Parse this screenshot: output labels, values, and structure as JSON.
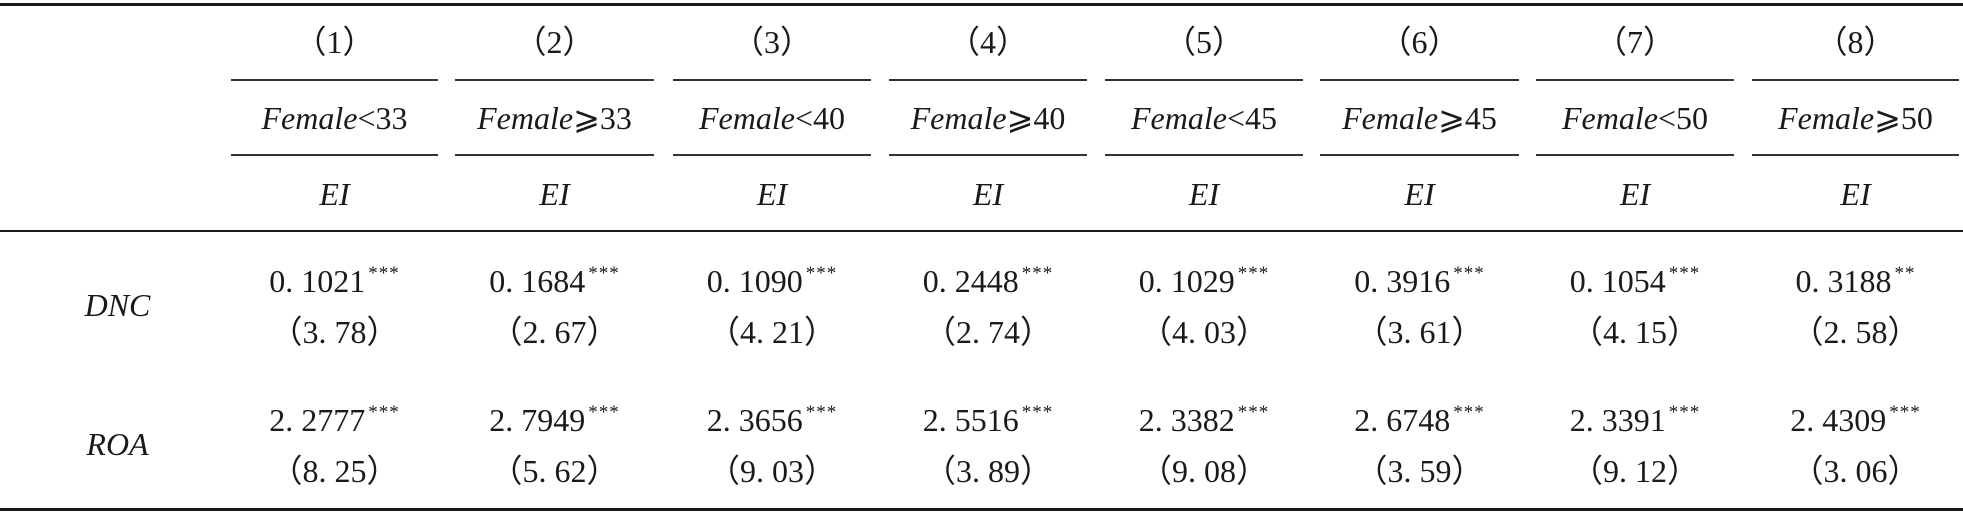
{
  "table": {
    "columns": [
      {
        "number": "（1）",
        "group_var": "Female",
        "group_op": "<33",
        "dep_var": "EI"
      },
      {
        "number": "（2）",
        "group_var": "Female",
        "group_op": "⩾33",
        "dep_var": "EI"
      },
      {
        "number": "（3）",
        "group_var": "Female",
        "group_op": "<40",
        "dep_var": "EI"
      },
      {
        "number": "（4）",
        "group_var": "Female",
        "group_op": "⩾40",
        "dep_var": "EI"
      },
      {
        "number": "（5）",
        "group_var": "Female",
        "group_op": "<45",
        "dep_var": "EI"
      },
      {
        "number": "（6）",
        "group_var": "Female",
        "group_op": "⩾45",
        "dep_var": "EI"
      },
      {
        "number": "（7）",
        "group_var": "Female",
        "group_op": "<50",
        "dep_var": "EI"
      },
      {
        "number": "（8）",
        "group_var": "Female",
        "group_op": "⩾50",
        "dep_var": "EI"
      }
    ],
    "rows": [
      {
        "label": "DNC",
        "cells": [
          {
            "coef": "0. 1021",
            "stars": "***",
            "tstat": "（3. 78）"
          },
          {
            "coef": "0. 1684",
            "stars": "***",
            "tstat": "（2. 67）"
          },
          {
            "coef": "0. 1090",
            "stars": "***",
            "tstat": "（4. 21）"
          },
          {
            "coef": "0. 2448",
            "stars": "***",
            "tstat": "（2. 74）"
          },
          {
            "coef": "0. 1029",
            "stars": "***",
            "tstat": "（4. 03）"
          },
          {
            "coef": "0. 3916",
            "stars": "***",
            "tstat": "（3. 61）"
          },
          {
            "coef": "0. 1054",
            "stars": "***",
            "tstat": "（4. 15）"
          },
          {
            "coef": "0. 3188",
            "stars": "**",
            "tstat": "（2. 58）"
          }
        ]
      },
      {
        "label": "ROA",
        "cells": [
          {
            "coef": "2. 2777",
            "stars": "***",
            "tstat": "（8. 25）"
          },
          {
            "coef": "2. 7949",
            "stars": "***",
            "tstat": "（5. 62）"
          },
          {
            "coef": "2. 3656",
            "stars": "***",
            "tstat": "（9. 03）"
          },
          {
            "coef": "2. 5516",
            "stars": "***",
            "tstat": "（3. 89）"
          },
          {
            "coef": "2. 3382",
            "stars": "***",
            "tstat": "（9. 08）"
          },
          {
            "coef": "2. 6748",
            "stars": "***",
            "tstat": "（3. 59）"
          },
          {
            "coef": "2. 3391",
            "stars": "***",
            "tstat": "（9. 12）"
          },
          {
            "coef": "2. 4309",
            "stars": "***",
            "tstat": "（3. 06）"
          }
        ]
      }
    ]
  }
}
